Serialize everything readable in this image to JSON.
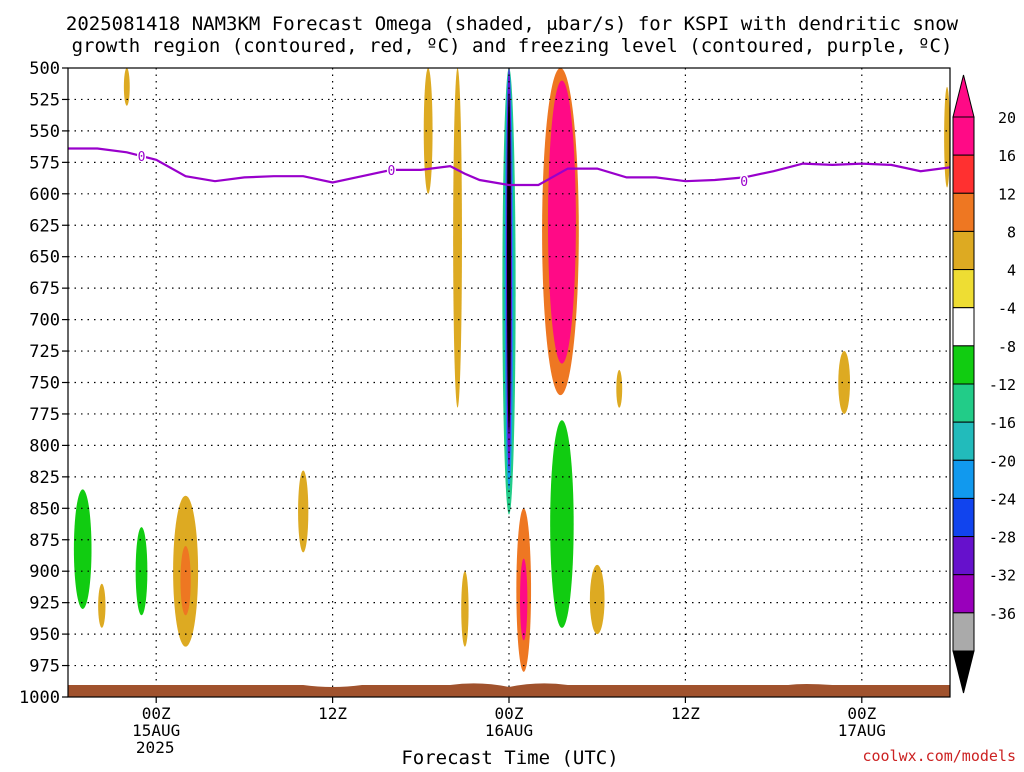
{
  "title": {
    "line1": "2025081418 NAM3KM Forecast Omega (shaded, μbar/s) for KSPI with dendritic snow",
    "line2": "growth region (contoured, red, ºC) and freezing level (contoured, purple, ºC)"
  },
  "xlabel": "Forecast Time (UTC)",
  "credit": "coolwx.com/models",
  "chart_data": {
    "type": "heatmap",
    "title": "2025081418 NAM3KM Forecast Omega (shaded, μbar/s) for KSPI with dendritic snow growth region (contoured, red, ºC) and freezing level (contoured, purple, ºC)",
    "xlabel": "Forecast Time (UTC)",
    "ylabel": "",
    "x_range_hours": [
      -6,
      54
    ],
    "x_ticks": [
      {
        "hour": 0,
        "label": "00Z",
        "date": "15AUG",
        "year": "2025"
      },
      {
        "hour": 12,
        "label": "12Z",
        "date": "",
        "year": ""
      },
      {
        "hour": 24,
        "label": "00Z",
        "date": "16AUG",
        "year": ""
      },
      {
        "hour": 36,
        "label": "12Z",
        "date": "",
        "year": ""
      },
      {
        "hour": 48,
        "label": "00Z",
        "date": "17AUG",
        "year": ""
      }
    ],
    "y_axis": "pressure (hPa), inverted",
    "y_range": [
      1000,
      500
    ],
    "y_ticks": [
      500,
      525,
      550,
      575,
      600,
      625,
      650,
      675,
      700,
      725,
      750,
      775,
      800,
      825,
      850,
      875,
      900,
      925,
      950,
      975,
      1000
    ],
    "grid": true,
    "colorbar": {
      "labels": [
        "20",
        "16",
        "12",
        "8",
        "4",
        "-4",
        "-8",
        "-12",
        "-16",
        "-20",
        "-24",
        "-28",
        "-32",
        "-36"
      ],
      "colors": [
        "#ff0a86",
        "#ff3030",
        "#ee7722",
        "#ddaa22",
        "#eedd33",
        "#ffffff",
        "#11cc11",
        "#22cc88",
        "#22bbbb",
        "#1199ee",
        "#1144ee",
        "#6611cc",
        "#9900bb",
        "#aaaaaa"
      ],
      "top_arrow_color": "#ff0a86",
      "bottom_arrow_color": "#000000"
    },
    "freezing_level_label": "0",
    "freezing_level": {
      "color": "#9900cc",
      "hours": [
        -6,
        -4,
        -2,
        0,
        2,
        4,
        6,
        8,
        10,
        12,
        14,
        16,
        18,
        20,
        21,
        22,
        24,
        26,
        28,
        30,
        32,
        34,
        36,
        38,
        40,
        42,
        44,
        46,
        48,
        50,
        52,
        54
      ],
      "pressure": [
        564,
        564,
        567,
        573,
        586,
        590,
        587,
        586,
        586,
        591,
        586,
        581,
        581,
        578,
        584,
        589,
        593,
        593,
        580,
        580,
        587,
        587,
        590,
        589,
        587,
        582,
        576,
        577,
        576,
        577,
        582,
        579
      ]
    },
    "ground_color": "#a0522d",
    "omega_cells": [
      {
        "hour_center": 24.0,
        "p_top": 500,
        "p_bottom": 905,
        "hour_width": 1.3,
        "value": -8
      },
      {
        "hour_center": 24.0,
        "p_top": 500,
        "p_bottom": 855,
        "hour_width": 0.9,
        "value": -16
      },
      {
        "hour_center": 24.0,
        "p_top": 500,
        "p_bottom": 835,
        "hour_width": 0.6,
        "value": -24
      },
      {
        "hour_center": 24.0,
        "p_top": 500,
        "p_bottom": 820,
        "hour_width": 0.4,
        "value": -32
      },
      {
        "hour_center": 24.0,
        "p_top": 520,
        "p_bottom": 790,
        "hour_width": 0.2,
        "value": -36
      },
      {
        "hour_center": 27.5,
        "p_top": 500,
        "p_bottom": 760,
        "hour_width": 2.5,
        "value": 8
      },
      {
        "hour_center": 27.6,
        "p_top": 510,
        "p_bottom": 735,
        "hour_width": 1.9,
        "value": 20
      },
      {
        "hour_center": 28.0,
        "p_top": 760,
        "p_bottom": 960,
        "hour_width": 3.0,
        "value": -8
      },
      {
        "hour_center": 27.6,
        "p_top": 780,
        "p_bottom": 945,
        "hour_width": 1.6,
        "value": -12
      },
      {
        "hour_center": 22.0,
        "p_top": 620,
        "p_bottom": 900,
        "hour_width": 1.8,
        "value": -8
      },
      {
        "hour_center": 25.0,
        "p_top": 850,
        "p_bottom": 980,
        "hour_width": 1.0,
        "value": 8
      },
      {
        "hour_center": 25.0,
        "p_top": 890,
        "p_bottom": 955,
        "hour_width": 0.5,
        "value": 16
      },
      {
        "hour_center": 18.5,
        "p_top": 845,
        "p_bottom": 955,
        "hour_width": 2.5,
        "value": -8
      },
      {
        "hour_center": -5.0,
        "p_top": 795,
        "p_bottom": 965,
        "hour_width": 2.3,
        "value": -8
      },
      {
        "hour_center": -5.0,
        "p_top": 835,
        "p_bottom": 930,
        "hour_width": 1.2,
        "value": -12
      },
      {
        "hour_center": -1.0,
        "p_top": 830,
        "p_bottom": 965,
        "hour_width": 1.6,
        "value": -8
      },
      {
        "hour_center": -1.0,
        "p_top": 865,
        "p_bottom": 935,
        "hour_width": 0.8,
        "value": -12
      },
      {
        "hour_center": 2.0,
        "p_top": 840,
        "p_bottom": 960,
        "hour_width": 1.7,
        "value": 4
      },
      {
        "hour_center": 2.0,
        "p_top": 880,
        "p_bottom": 935,
        "hour_width": 0.7,
        "value": 8
      },
      {
        "hour_center": 0.8,
        "p_top": 840,
        "p_bottom": 950,
        "hour_width": 0.6,
        "value": -8
      },
      {
        "hour_center": 10.0,
        "p_top": 620,
        "p_bottom": 710,
        "hour_width": 0.5,
        "value": -8
      },
      {
        "hour_center": 10.0,
        "p_top": 820,
        "p_bottom": 885,
        "hour_width": 0.7,
        "value": 4
      },
      {
        "hour_center": 11.0,
        "p_top": 855,
        "p_bottom": 900,
        "hour_width": 0.3,
        "value": -8
      },
      {
        "hour_center": 18.5,
        "p_top": 500,
        "p_bottom": 600,
        "hour_width": 0.6,
        "value": 4
      },
      {
        "hour_center": 20.5,
        "p_top": 500,
        "p_bottom": 770,
        "hour_width": 0.6,
        "value": 4
      },
      {
        "hour_center": 21.0,
        "p_top": 900,
        "p_bottom": 960,
        "hour_width": 0.5,
        "value": 4
      },
      {
        "hour_center": -2.0,
        "p_top": 500,
        "p_bottom": 530,
        "hour_width": 0.4,
        "value": 4
      },
      {
        "hour_center": -3.7,
        "p_top": 910,
        "p_bottom": 945,
        "hour_width": 0.5,
        "value": 4
      },
      {
        "hour_center": 30.0,
        "p_top": 895,
        "p_bottom": 950,
        "hour_width": 1.0,
        "value": 4
      },
      {
        "hour_center": 31.5,
        "p_top": 530,
        "p_bottom": 560,
        "hour_width": 0.3,
        "value": -8
      },
      {
        "hour_center": 31.5,
        "p_top": 740,
        "p_bottom": 770,
        "hour_width": 0.4,
        "value": 4
      },
      {
        "hour_center": 42.0,
        "p_top": 860,
        "p_bottom": 950,
        "hour_width": 1.4,
        "value": -8
      },
      {
        "hour_center": 45.0,
        "p_top": 830,
        "p_bottom": 955,
        "hour_width": 1.8,
        "value": -8
      },
      {
        "hour_center": 46.8,
        "p_top": 725,
        "p_bottom": 775,
        "hour_width": 0.8,
        "value": 4
      },
      {
        "hour_center": 53.8,
        "p_top": 515,
        "p_bottom": 595,
        "hour_width": 0.4,
        "value": 4
      }
    ]
  }
}
